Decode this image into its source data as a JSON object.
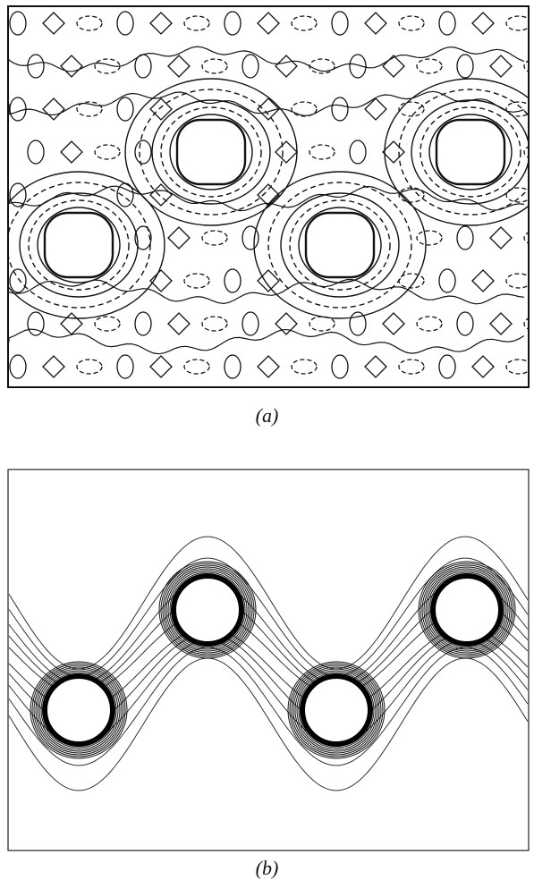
{
  "figure": {
    "panel_a": {
      "caption": "(a)"
    },
    "panel_b": {
      "caption": "(b)"
    }
  },
  "colors": {
    "line": "#111111",
    "background": "#ffffff"
  }
}
